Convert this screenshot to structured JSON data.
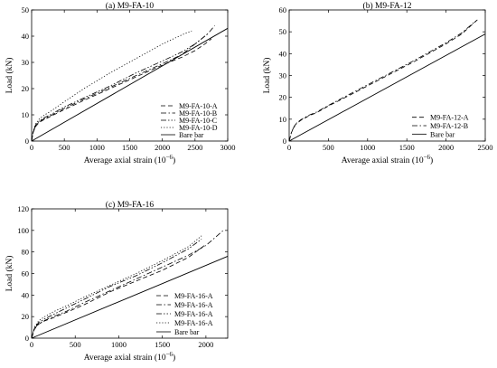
{
  "chart_data": [
    {
      "type": "line",
      "title": "(a) M9-FA-10",
      "xlabel": "Average axial strain",
      "xlabel_unit": "(10",
      "xlabel_exp": "−6",
      "xlabel_close": ")",
      "ylabel": "Load (kN)",
      "xlim": [
        0,
        3000
      ],
      "ylim": [
        0,
        50
      ],
      "xticks": [
        0,
        500,
        1000,
        1500,
        2000,
        2500,
        3000
      ],
      "yticks": [
        0,
        10,
        20,
        30,
        40,
        50
      ],
      "legend_position": "lower-right",
      "series": [
        {
          "name": "M9-FA-10-A",
          "style": "dashed",
          "x": [
            0,
            20,
            60,
            120,
            200,
            300,
            500,
            800,
            1200,
            1600,
            2000,
            2300,
            2500,
            2650,
            2750
          ],
          "y": [
            0,
            3,
            5.5,
            7.2,
            8.3,
            9.5,
            12,
            15.5,
            20,
            24.5,
            29,
            32,
            34.5,
            37,
            39
          ]
        },
        {
          "name": "M9-FA-10-B",
          "style": "dashdot",
          "x": [
            0,
            20,
            60,
            120,
            200,
            300,
            500,
            800,
            1200,
            1600,
            2000,
            2300,
            2500,
            2700,
            2800
          ],
          "y": [
            0,
            3,
            5.8,
            7.5,
            8.6,
            9.8,
            12.5,
            16,
            20.5,
            25,
            29.5,
            33,
            37,
            41,
            44
          ]
        },
        {
          "name": "M9-FA-10-C",
          "style": "dashdotdot",
          "x": [
            0,
            20,
            60,
            120,
            200,
            300,
            500,
            800,
            1200,
            1600,
            2000,
            2300,
            2500,
            2600,
            2700
          ],
          "y": [
            0,
            3.2,
            6,
            7.8,
            9,
            10.2,
            13,
            16.5,
            21,
            26,
            30.5,
            34,
            37,
            39,
            41
          ]
        },
        {
          "name": "M9-FA-10-D",
          "style": "dotted",
          "x": [
            0,
            20,
            60,
            120,
            200,
            300,
            500,
            800,
            1200,
            1600,
            2000,
            2300,
            2450
          ],
          "y": [
            0,
            3.5,
            6.5,
            8.5,
            10,
            11.5,
            15,
            20,
            26,
            31.5,
            37,
            40.5,
            42
          ]
        },
        {
          "name": "Bare bar",
          "style": "solid",
          "x": [
            0,
            3000
          ],
          "y": [
            0,
            43
          ]
        }
      ]
    },
    {
      "type": "line",
      "title": "(b) M9-FA-12",
      "xlabel": "Average axial strain",
      "xlabel_unit": "(10",
      "xlabel_exp": "−6",
      "xlabel_close": ")",
      "ylabel": "Load (kN)",
      "xlim": [
        0,
        2500
      ],
      "ylim": [
        0,
        60
      ],
      "xticks": [
        0,
        500,
        1000,
        1500,
        2000,
        2500
      ],
      "yticks": [
        0,
        10,
        20,
        30,
        40,
        50,
        60
      ],
      "legend_position": "lower-right",
      "series": [
        {
          "name": "M9-FA-12-A",
          "style": "dashed",
          "x": [
            0,
            30,
            80,
            150,
            250,
            350,
            500,
            800,
            1200,
            1600,
            2000,
            2200,
            2400
          ],
          "y": [
            0,
            4,
            7.5,
            9.5,
            11.5,
            13,
            16,
            21.5,
            29,
            36.5,
            44.5,
            49,
            55.5
          ]
        },
        {
          "name": "M9-FA-12-B",
          "style": "dashdot",
          "x": [
            0,
            30,
            80,
            150,
            250,
            350,
            500,
            800,
            1200,
            1600,
            2000,
            2200,
            2380
          ],
          "y": [
            0,
            4.2,
            7.8,
            9.8,
            11.8,
            13.3,
            16.3,
            22,
            29.5,
            37,
            45,
            49.5,
            55
          ]
        },
        {
          "name": "Bare bar",
          "style": "solid",
          "x": [
            0,
            2500
          ],
          "y": [
            0,
            49
          ]
        }
      ]
    },
    {
      "type": "line",
      "title": "(c) M9-FA-16",
      "xlabel": "Average axial strain",
      "xlabel_unit": "(10",
      "xlabel_exp": "−6",
      "xlabel_close": ")",
      "ylabel": "Load (kN)",
      "xlim": [
        0,
        2250
      ],
      "ylim": [
        0,
        120
      ],
      "xticks": [
        0,
        500,
        1000,
        1500,
        2000
      ],
      "yticks": [
        0,
        20,
        40,
        60,
        80,
        100,
        120
      ],
      "legend_position": "lower-right",
      "series": [
        {
          "name": "M9-FA-16-A",
          "style": "dashed",
          "x": [
            0,
            30,
            80,
            150,
            250,
            400,
            600,
            900,
            1200,
            1500,
            1800,
            2000
          ],
          "y": [
            0,
            8,
            13,
            16,
            19,
            24,
            31,
            43,
            53,
            63,
            75,
            87
          ]
        },
        {
          "name": "M9-FA-16-A",
          "style": "dashdot",
          "x": [
            0,
            30,
            80,
            150,
            250,
            400,
            600,
            900,
            1200,
            1500,
            1800,
            2000,
            2200
          ],
          "y": [
            0,
            8.5,
            13.5,
            16.5,
            20,
            25,
            33,
            44,
            55,
            66,
            77,
            86,
            100
          ]
        },
        {
          "name": "M9-FA-16-A",
          "style": "dashdotdot",
          "x": [
            0,
            30,
            80,
            150,
            250,
            400,
            600,
            900,
            1200,
            1500,
            1800,
            1950
          ],
          "y": [
            0,
            9,
            14.5,
            18,
            22,
            28,
            36,
            48,
            58,
            70,
            83,
            92
          ]
        },
        {
          "name": "M9-FA-16-A",
          "style": "dotted",
          "x": [
            0,
            30,
            80,
            150,
            250,
            400,
            600,
            900,
            1200,
            1500,
            1800,
            1950
          ],
          "y": [
            0,
            10,
            16,
            20,
            24.5,
            30,
            38,
            49,
            60,
            72,
            85,
            95
          ]
        },
        {
          "name": "Bare bar",
          "style": "solid",
          "x": [
            0,
            2250
          ],
          "y": [
            0,
            76
          ]
        }
      ]
    }
  ]
}
